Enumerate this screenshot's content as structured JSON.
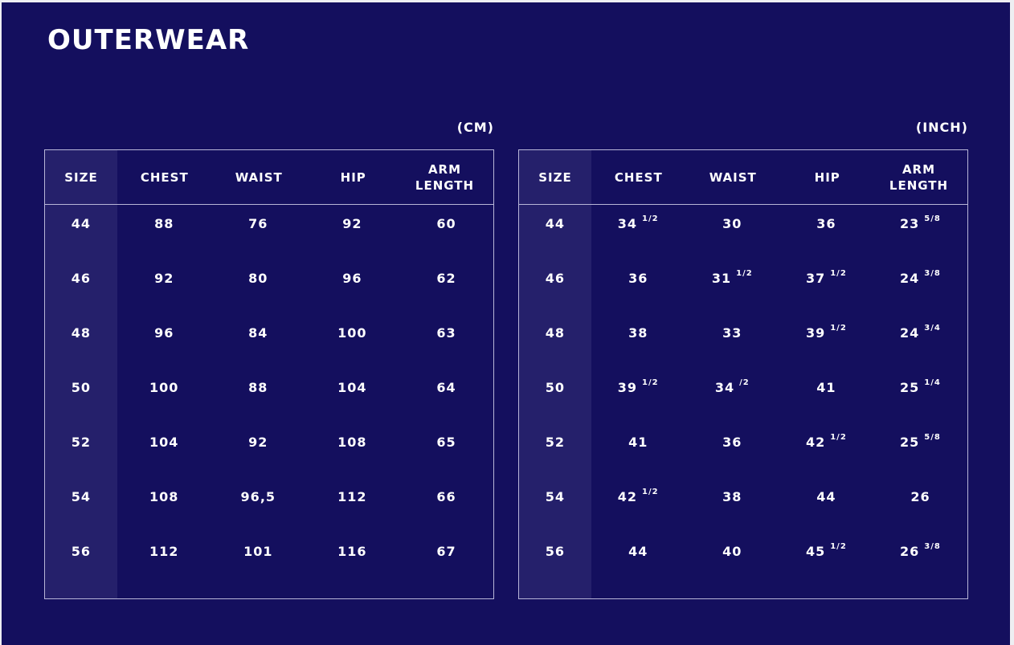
{
  "title": "OUTERWEAR",
  "colors": {
    "background": "#140f5e",
    "size_column": "#25206b",
    "border": "#b8b6d8",
    "text": "#ffffff"
  },
  "tables": [
    {
      "unit": "(CM)",
      "headers": [
        "SIZE",
        "CHEST",
        "WAIST",
        "HIP",
        "ARM LENGTH"
      ],
      "rows": [
        [
          [
            "44",
            ""
          ],
          [
            "88",
            ""
          ],
          [
            "76",
            ""
          ],
          [
            "92",
            ""
          ],
          [
            "60",
            ""
          ]
        ],
        [
          [
            "46",
            ""
          ],
          [
            "92",
            ""
          ],
          [
            "80",
            ""
          ],
          [
            "96",
            ""
          ],
          [
            "62",
            ""
          ]
        ],
        [
          [
            "48",
            ""
          ],
          [
            "96",
            ""
          ],
          [
            "84",
            ""
          ],
          [
            "100",
            ""
          ],
          [
            "63",
            ""
          ]
        ],
        [
          [
            "50",
            ""
          ],
          [
            "100",
            ""
          ],
          [
            "88",
            ""
          ],
          [
            "104",
            ""
          ],
          [
            "64",
            ""
          ]
        ],
        [
          [
            "52",
            ""
          ],
          [
            "104",
            ""
          ],
          [
            "92",
            ""
          ],
          [
            "108",
            ""
          ],
          [
            "65",
            ""
          ]
        ],
        [
          [
            "54",
            ""
          ],
          [
            "108",
            ""
          ],
          [
            "96,5",
            ""
          ],
          [
            "112",
            ""
          ],
          [
            "66",
            ""
          ]
        ],
        [
          [
            "56",
            ""
          ],
          [
            "112",
            ""
          ],
          [
            "101",
            ""
          ],
          [
            "116",
            ""
          ],
          [
            "67",
            ""
          ]
        ]
      ]
    },
    {
      "unit": "(INCH)",
      "headers": [
        "SIZE",
        "CHEST",
        "WAIST",
        "HIP",
        "ARM LENGTH"
      ],
      "rows": [
        [
          [
            "44",
            ""
          ],
          [
            "34",
            "1/2"
          ],
          [
            "30",
            ""
          ],
          [
            "36",
            ""
          ],
          [
            "23",
            "5/8"
          ]
        ],
        [
          [
            "46",
            ""
          ],
          [
            "36",
            ""
          ],
          [
            "31",
            "1/2"
          ],
          [
            "37",
            "1/2"
          ],
          [
            "24",
            "3/8"
          ]
        ],
        [
          [
            "48",
            ""
          ],
          [
            "38",
            ""
          ],
          [
            "33",
            ""
          ],
          [
            "39",
            "1/2"
          ],
          [
            "24",
            "3/4"
          ]
        ],
        [
          [
            "50",
            ""
          ],
          [
            "39",
            "1/2"
          ],
          [
            "34",
            "/2"
          ],
          [
            "41",
            ""
          ],
          [
            "25",
            "1/4"
          ]
        ],
        [
          [
            "52",
            ""
          ],
          [
            "41",
            ""
          ],
          [
            "36",
            ""
          ],
          [
            "42",
            "1/2"
          ],
          [
            "25",
            "5/8"
          ]
        ],
        [
          [
            "54",
            ""
          ],
          [
            "42",
            "1/2"
          ],
          [
            "38",
            ""
          ],
          [
            "44",
            ""
          ],
          [
            "26",
            ""
          ]
        ],
        [
          [
            "56",
            ""
          ],
          [
            "44",
            ""
          ],
          [
            "40",
            ""
          ],
          [
            "45",
            "1/2"
          ],
          [
            "26",
            "3/8"
          ]
        ]
      ]
    }
  ]
}
